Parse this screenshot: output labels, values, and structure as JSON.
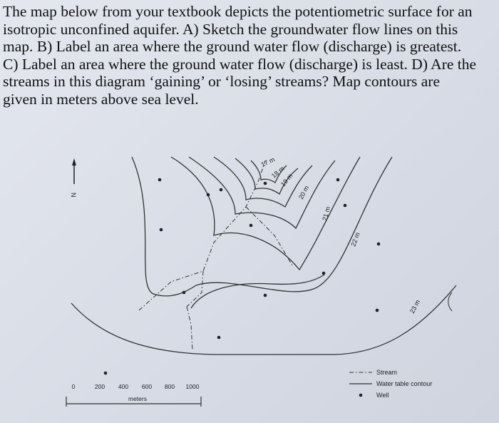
{
  "question": "The map below from your textbook depicts the potentiometric surface for an isotropic unconfined aquifer.  A) Sketch the groundwater flow lines on this map.  B) Label an area where the ground water flow (discharge) is greatest.  C) Label an area where the ground water flow (discharge) is least.  D) Are the streams in this diagram ‘gaining’ or ‘losing’ streams?  Map contours are given in meters above sea level.",
  "map": {
    "north_label": "N",
    "contour_labels": [
      "17 m",
      "18 m",
      "19 m",
      "20 m",
      "21 m",
      "22 m",
      "23 m"
    ],
    "scale": {
      "ticks": [
        0,
        200,
        400,
        600,
        800,
        1000
      ],
      "unit": "meters"
    },
    "legend": [
      "Stream",
      "Water table contour",
      "Well"
    ]
  }
}
